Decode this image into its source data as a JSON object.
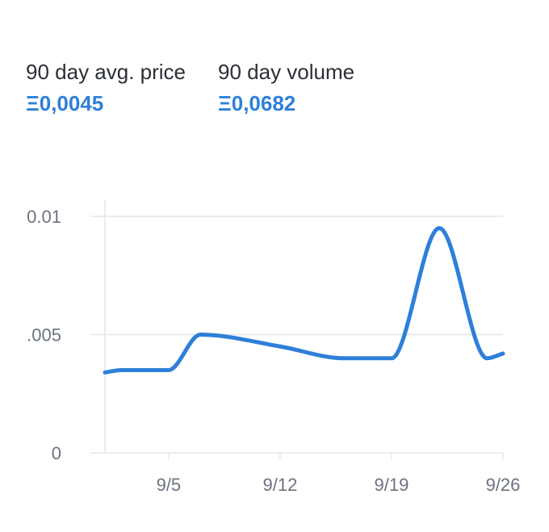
{
  "stats": [
    {
      "label": "90 day avg. price",
      "value": "Ξ0,0045"
    },
    {
      "label": "90 day volume",
      "value": "Ξ0,0682"
    }
  ],
  "colors": {
    "accent": "#2e7fd9",
    "grid": "#e3e7ec",
    "text": "#2b2f36",
    "tick": "#6b7280"
  },
  "chart_data": {
    "type": "line",
    "title": "",
    "xlabel": "",
    "ylabel": "",
    "ylim": [
      0,
      0.01
    ],
    "yticks": [
      {
        "value": 0.01,
        "label": "0.01"
      },
      {
        "value": 0.005,
        "label": ".005"
      },
      {
        "value": 0,
        "label": "0"
      }
    ],
    "xlim": [
      "9/1",
      "9/26"
    ],
    "xticks": [
      "9/5",
      "9/12",
      "9/19",
      "9/26"
    ],
    "grid": true,
    "series": [
      {
        "x": [
          "9/1",
          "9/2",
          "9/5",
          "9/7",
          "9/12",
          "9/16",
          "9/19",
          "9/22",
          "9/25",
          "9/26"
        ],
        "values": [
          0.0034,
          0.0035,
          0.0035,
          0.005,
          0.0045,
          0.004,
          0.004,
          0.0095,
          0.004,
          0.0042
        ]
      }
    ]
  }
}
